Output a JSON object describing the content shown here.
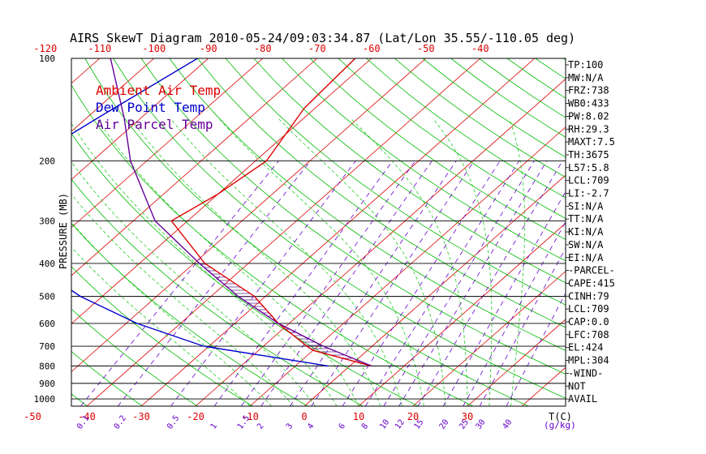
{
  "chart_data": {
    "type": "line",
    "title": "AIRS SkewT Diagram 2010-05-24/09:03:34.87 (Lat/Lon 35.55/-110.05 deg)",
    "ylabel": "PRESSURE (MB)",
    "xlabel_right": "T(C)",
    "mixing_unit": "(g/kg)",
    "pressure_ticks": [
      100,
      200,
      300,
      400,
      500,
      600,
      700,
      800,
      900,
      1000
    ],
    "bottom_temp_ticks": [
      -50,
      -40,
      -30,
      -20,
      -10,
      0,
      10,
      20,
      30
    ],
    "top_temp_ticks": [
      -120,
      -110,
      -100,
      -90,
      -80,
      -70,
      -60,
      -50,
      -40
    ],
    "mixing_ratio_labels": [
      "0.1",
      "0.2",
      "0.5",
      "1",
      "1.5",
      "2",
      "3",
      "4",
      "6",
      "8",
      "10",
      "12",
      "15",
      "20",
      "25",
      "30",
      "40"
    ],
    "colors": {
      "ambient": "#dd0000",
      "dewpoint": "#0000cc",
      "parcel": "#660099",
      "isotherm": "#dd0000",
      "dry_adiabat": "#00bb00",
      "moist_adiabat": "#22cc22",
      "mixing_ratio": "#6600cc",
      "isobar": "#000000"
    },
    "series": [
      {
        "name": "Ambient Air Temp",
        "points": [
          {
            "p": 100,
            "t": -63
          },
          {
            "p": 140,
            "t": -62
          },
          {
            "p": 200,
            "t": -58
          },
          {
            "p": 250,
            "t": -60
          },
          {
            "p": 300,
            "t": -63
          },
          {
            "p": 400,
            "t": -48
          },
          {
            "p": 500,
            "t": -32
          },
          {
            "p": 600,
            "t": -22
          },
          {
            "p": 700,
            "t": -12
          },
          {
            "p": 720,
            "t": -10
          },
          {
            "p": 800,
            "t": 4
          }
        ]
      },
      {
        "name": "Dew Point Temp",
        "points": [
          {
            "p": 100,
            "t": -92
          },
          {
            "p": 150,
            "t": -98
          },
          {
            "p": 200,
            "t": -102
          },
          {
            "p": 250,
            "t": -102
          },
          {
            "p": 300,
            "t": -93
          },
          {
            "p": 400,
            "t": -80
          },
          {
            "p": 500,
            "t": -64
          },
          {
            "p": 600,
            "t": -48
          },
          {
            "p": 700,
            "t": -31
          },
          {
            "p": 800,
            "t": -4
          }
        ]
      },
      {
        "name": "Air Parcel Temp",
        "points": [
          {
            "p": 100,
            "t": -108
          },
          {
            "p": 150,
            "t": -93
          },
          {
            "p": 200,
            "t": -83
          },
          {
            "p": 300,
            "t": -66
          },
          {
            "p": 400,
            "t": -49
          },
          {
            "p": 500,
            "t": -35
          },
          {
            "p": 600,
            "t": -22
          },
          {
            "p": 700,
            "t": -9
          },
          {
            "p": 800,
            "t": 4
          }
        ]
      }
    ],
    "legend": [
      "Ambient Air Temp",
      "Dew Point Temp",
      "Air Parcel Temp"
    ],
    "indices": [
      "TP:100",
      "MW:N/A",
      "FRZ:738",
      "WB0:433",
      "PW:8.02",
      "RH:29.3",
      "MAXT:7.5",
      "TH:3675",
      "L57:5.8",
      "LCL:709",
      "LI:-2.7",
      "SI:N/A",
      "TT:N/A",
      "KI:N/A",
      "SW:N/A",
      "EI:N/A",
      "-PARCEL-",
      "CAPE:415",
      "CINH:79",
      "LCL:709",
      "CAP:0.0",
      "LFC:708",
      "EL:424",
      "MPL:304",
      "-WIND-",
      "NOT",
      "AVAIL"
    ]
  }
}
